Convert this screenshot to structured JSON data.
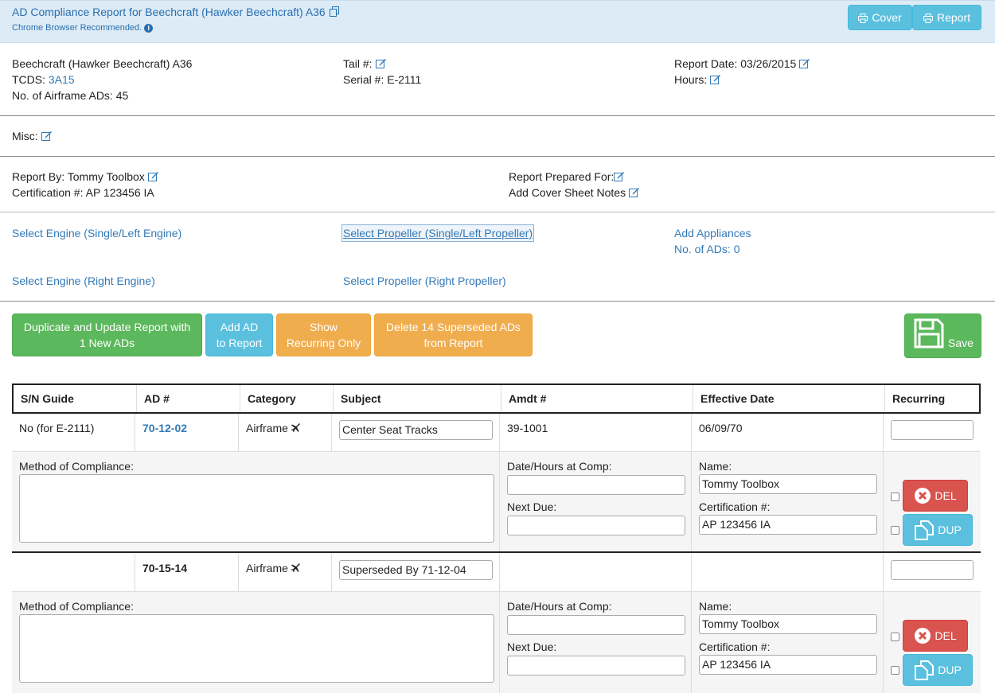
{
  "header": {
    "title": "AD Compliance Report for Beechcraft (Hawker Beechcraft) A36",
    "subtitle": "Chrome Browser Recommended.",
    "cover_label": "Cover",
    "report_label": "Report"
  },
  "aircraft": {
    "model": "Beechcraft (Hawker Beechcraft) A36",
    "tcds_label": "TCDS:",
    "tcds_value": "3A15",
    "airframe_ads": "No. of Airframe ADs: 45",
    "tail_label": "Tail #:",
    "serial": "Serial #: E-2111",
    "report_date": "Report Date: 03/26/2015",
    "hours_label": "Hours:"
  },
  "misc_label": "Misc:",
  "report_by": {
    "by": "Report By: Tommy Toolbox",
    "cert": "Certification #: AP 123456 IA",
    "prepared_for": "Report Prepared For:",
    "cover_notes": "Add Cover Sheet Notes"
  },
  "components": {
    "engine_left": "Select Engine (Single/Left Engine)",
    "propeller_left": "Select Propeller (Single/Left Propeller)",
    "appliances": "Add Appliances",
    "appliance_ads": "No. of ADs: 0",
    "engine_right": "Select Engine (Right Engine)",
    "propeller_right": "Select Propeller (Right Propeller)"
  },
  "actions": {
    "duplicate_line1": "Duplicate and Update Report with",
    "duplicate_line2": "1 New ADs",
    "add_line1": "Add AD",
    "add_line2": "to Report",
    "show_line1": "Show",
    "show_line2": "Recurring Only",
    "delete_line1": "Delete 14 Superseded ADs",
    "delete_line2": "from Report",
    "save": "Save"
  },
  "table": {
    "columns": [
      "S/N Guide",
      "AD #",
      "Category",
      "Subject",
      "Amdt #",
      "Effective Date",
      "Recurring"
    ],
    "labels": {
      "moc": "Method of Compliance:",
      "date_hours": "Date/Hours at Comp:",
      "next_due": "Next Due:",
      "name": "Name:",
      "cert": "Certification #:",
      "del": "DEL",
      "dup": "DUP"
    },
    "rows": [
      {
        "sn_guide": "No (for E-2111)",
        "ad": "70-12-02",
        "category": "Airframe",
        "subject": "Center Seat Tracks",
        "amdt": "39-1001",
        "effective": "06/09/70",
        "name": "Tommy Toolbox",
        "cert": "AP 123456 IA"
      },
      {
        "sn_guide": "",
        "ad": "70-15-14",
        "category": "Airframe",
        "subject": "Superseded By 71-12-04",
        "amdt": "",
        "effective": "",
        "name": "Tommy Toolbox",
        "cert": "AP 123456 IA"
      }
    ]
  }
}
